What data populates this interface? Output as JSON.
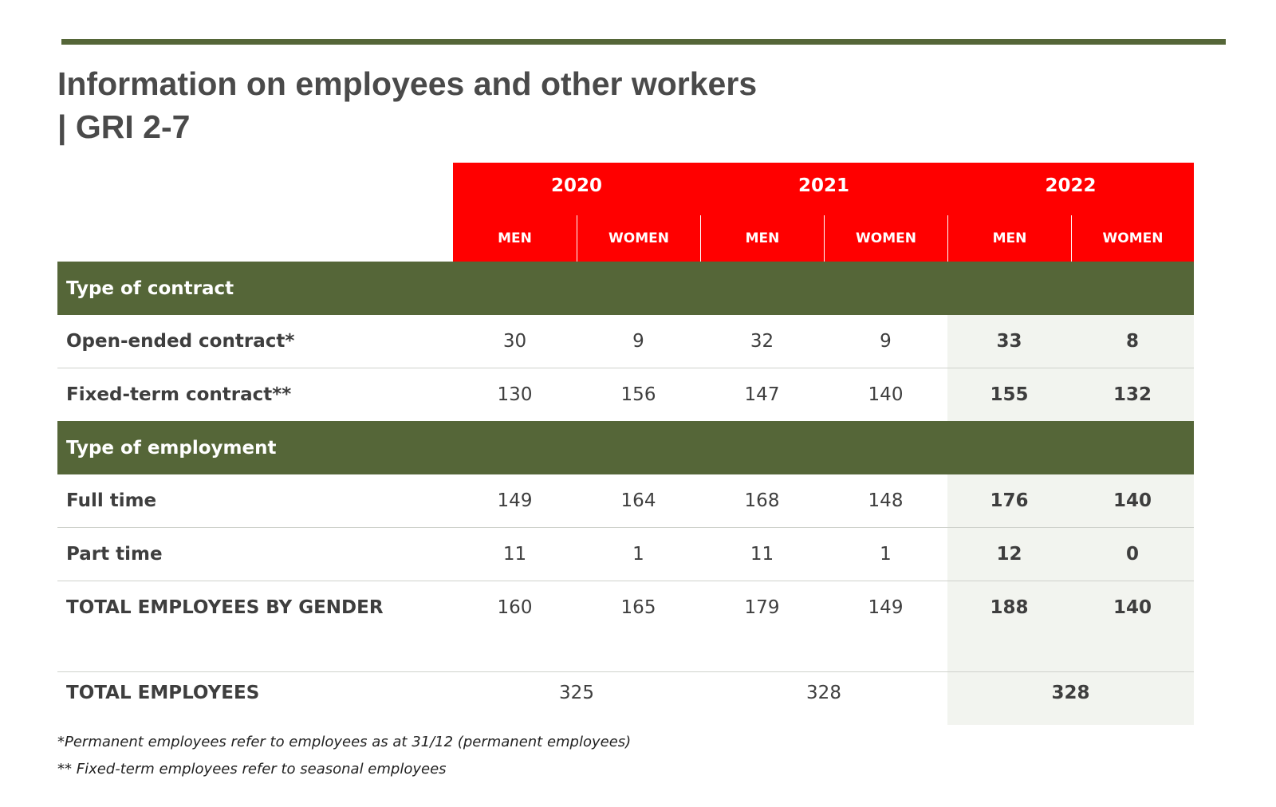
{
  "title": {
    "line1": "Information on employees and other workers",
    "line2": "| GRI 2-7"
  },
  "header": {
    "years": [
      "2020",
      "2021",
      "2022"
    ],
    "genders": [
      "MEN",
      "WOMEN",
      "MEN",
      "WOMEN",
      "MEN",
      "WOMEN"
    ]
  },
  "sections": {
    "contract": "Type of contract",
    "employment": "Type of employment"
  },
  "rows": [
    {
      "label": "Open-ended contract*",
      "values": [
        "30",
        "9",
        "32",
        "9",
        "33",
        "8"
      ]
    },
    {
      "label": "Fixed-term contract**",
      "values": [
        "130",
        "156",
        "147",
        "140",
        "155",
        "132"
      ]
    },
    {
      "label": "Full time",
      "values": [
        "149",
        "164",
        "168",
        "148",
        "176",
        "140"
      ]
    },
    {
      "label": "Part time",
      "values": [
        "11",
        "1",
        "11",
        "1",
        "12",
        "0"
      ]
    },
    {
      "label": "TOTAL EMPLOYEES BY GENDER",
      "values": [
        "160",
        "165",
        "179",
        "149",
        "188",
        "140"
      ]
    }
  ],
  "total": {
    "label": "TOTAL EMPLOYEES",
    "values": [
      "325",
      "328",
      "328"
    ]
  },
  "footnotes": [
    "*Permanent employees refer to employees as at 31/12 (permanent employees)",
    "** Fixed-term employees refer to seasonal employees"
  ],
  "colors": {
    "header_red": "#ff0000",
    "section_green": "#556638",
    "highlight": "#f2f4ef"
  }
}
